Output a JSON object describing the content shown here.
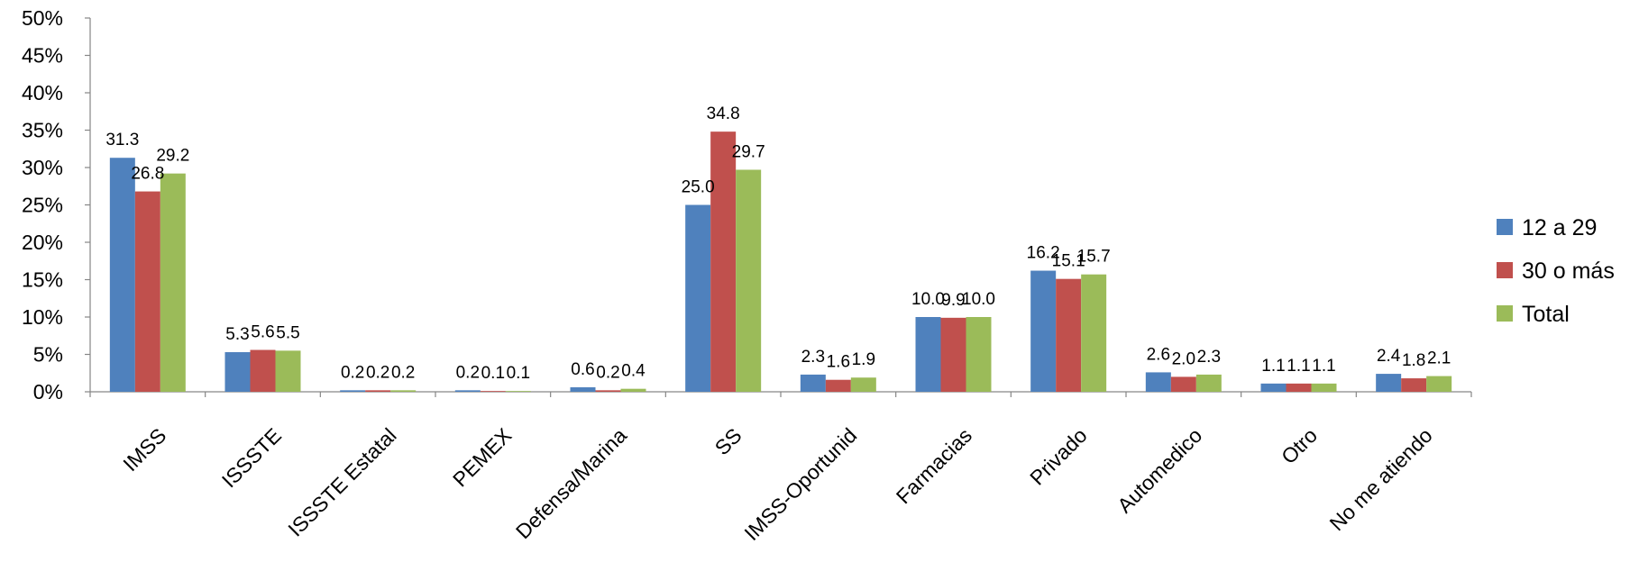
{
  "chart_data": {
    "type": "bar",
    "title": "",
    "xlabel": "",
    "ylabel": "",
    "ylim": [
      0,
      50
    ],
    "yticks": [
      "0%",
      "5%",
      "10%",
      "15%",
      "20%",
      "25%",
      "30%",
      "35%",
      "40%",
      "45%",
      "50%"
    ],
    "grid": false,
    "legend_position": "right",
    "categories": [
      "IMSS",
      "ISSSTE",
      "ISSSTE Estatal",
      "PEMEX",
      "Defensa/Marina",
      "SS",
      "IMSS-Oportunid",
      "Farmacias",
      "Privado",
      "Automedico",
      "Otro",
      "No me atiendo"
    ],
    "series": [
      {
        "name": "12 a 29",
        "color": "#4F81BD",
        "values": [
          31.3,
          5.3,
          0.2,
          0.2,
          0.6,
          25.0,
          2.3,
          10.0,
          16.2,
          2.6,
          1.1,
          2.4
        ],
        "labels": [
          "31.3",
          "5.3",
          "0.2",
          "0.2",
          "0.6",
          "25.0",
          "2.3",
          "10.0",
          "16.2",
          "2.6",
          "1.1",
          "2.4"
        ]
      },
      {
        "name": "30 o más",
        "color": "#C0504D",
        "values": [
          26.8,
          5.6,
          0.2,
          0.1,
          0.2,
          34.8,
          1.6,
          9.9,
          15.1,
          2.0,
          1.1,
          1.8
        ],
        "labels": [
          "26.8",
          "5.6",
          "0.2",
          "0.1",
          "0.2",
          "34.8",
          "1.6",
          "9.9",
          "15.1",
          "2.0",
          "1.1",
          "1.8"
        ]
      },
      {
        "name": "Total",
        "color": "#9BBB59",
        "values": [
          29.2,
          5.5,
          0.2,
          0.1,
          0.4,
          29.7,
          1.9,
          10.0,
          15.7,
          2.3,
          1.1,
          2.1
        ],
        "labels": [
          "29.2",
          "5.5",
          "0.2",
          "0.1",
          "0.4",
          "29.7",
          "1.9",
          "10.0",
          "15.7",
          "2.3",
          "1.1",
          "2.1"
        ]
      }
    ]
  }
}
